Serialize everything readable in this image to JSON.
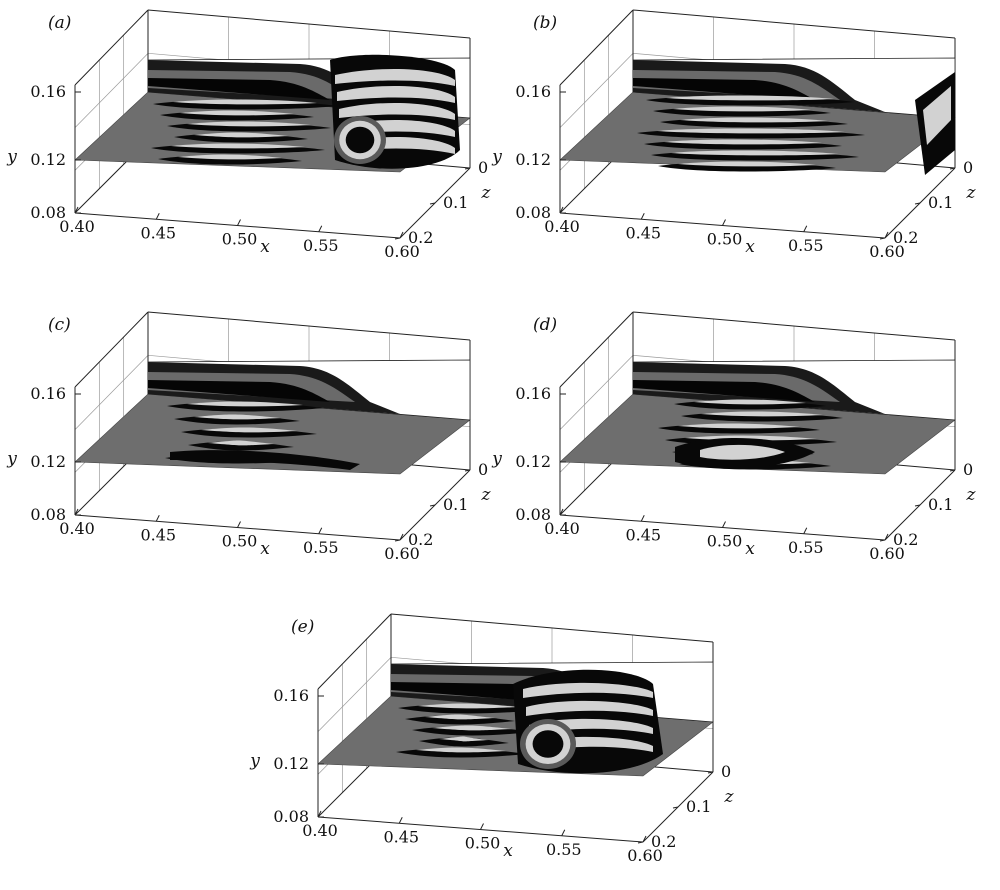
{
  "figure": {
    "panels": [
      {
        "label": "(a)",
        "variant": "roller-right"
      },
      {
        "label": "(b)",
        "variant": "sheet-right"
      },
      {
        "label": "(c)",
        "variant": "flat"
      },
      {
        "label": "(d)",
        "variant": "streaky"
      },
      {
        "label": "(e)",
        "variant": "roller-mid"
      }
    ],
    "axes": {
      "x_label": "x",
      "y_label": "y",
      "z_label": "z",
      "x_ticks": [
        "0.40",
        "0.45",
        "0.50",
        "0.55",
        "0.60"
      ],
      "y_ticks": [
        "0.16",
        "0.12",
        "0.08"
      ],
      "z_ticks": [
        "0",
        "0.1",
        "0.2"
      ]
    },
    "colors": {
      "floor": "#6e6e6e",
      "wall": "#ffffff",
      "structure_dark": "#080808",
      "structure_mid": "#5a5a5a",
      "structure_light": "#d2d2d2",
      "grid": "#9a9a9a"
    }
  }
}
